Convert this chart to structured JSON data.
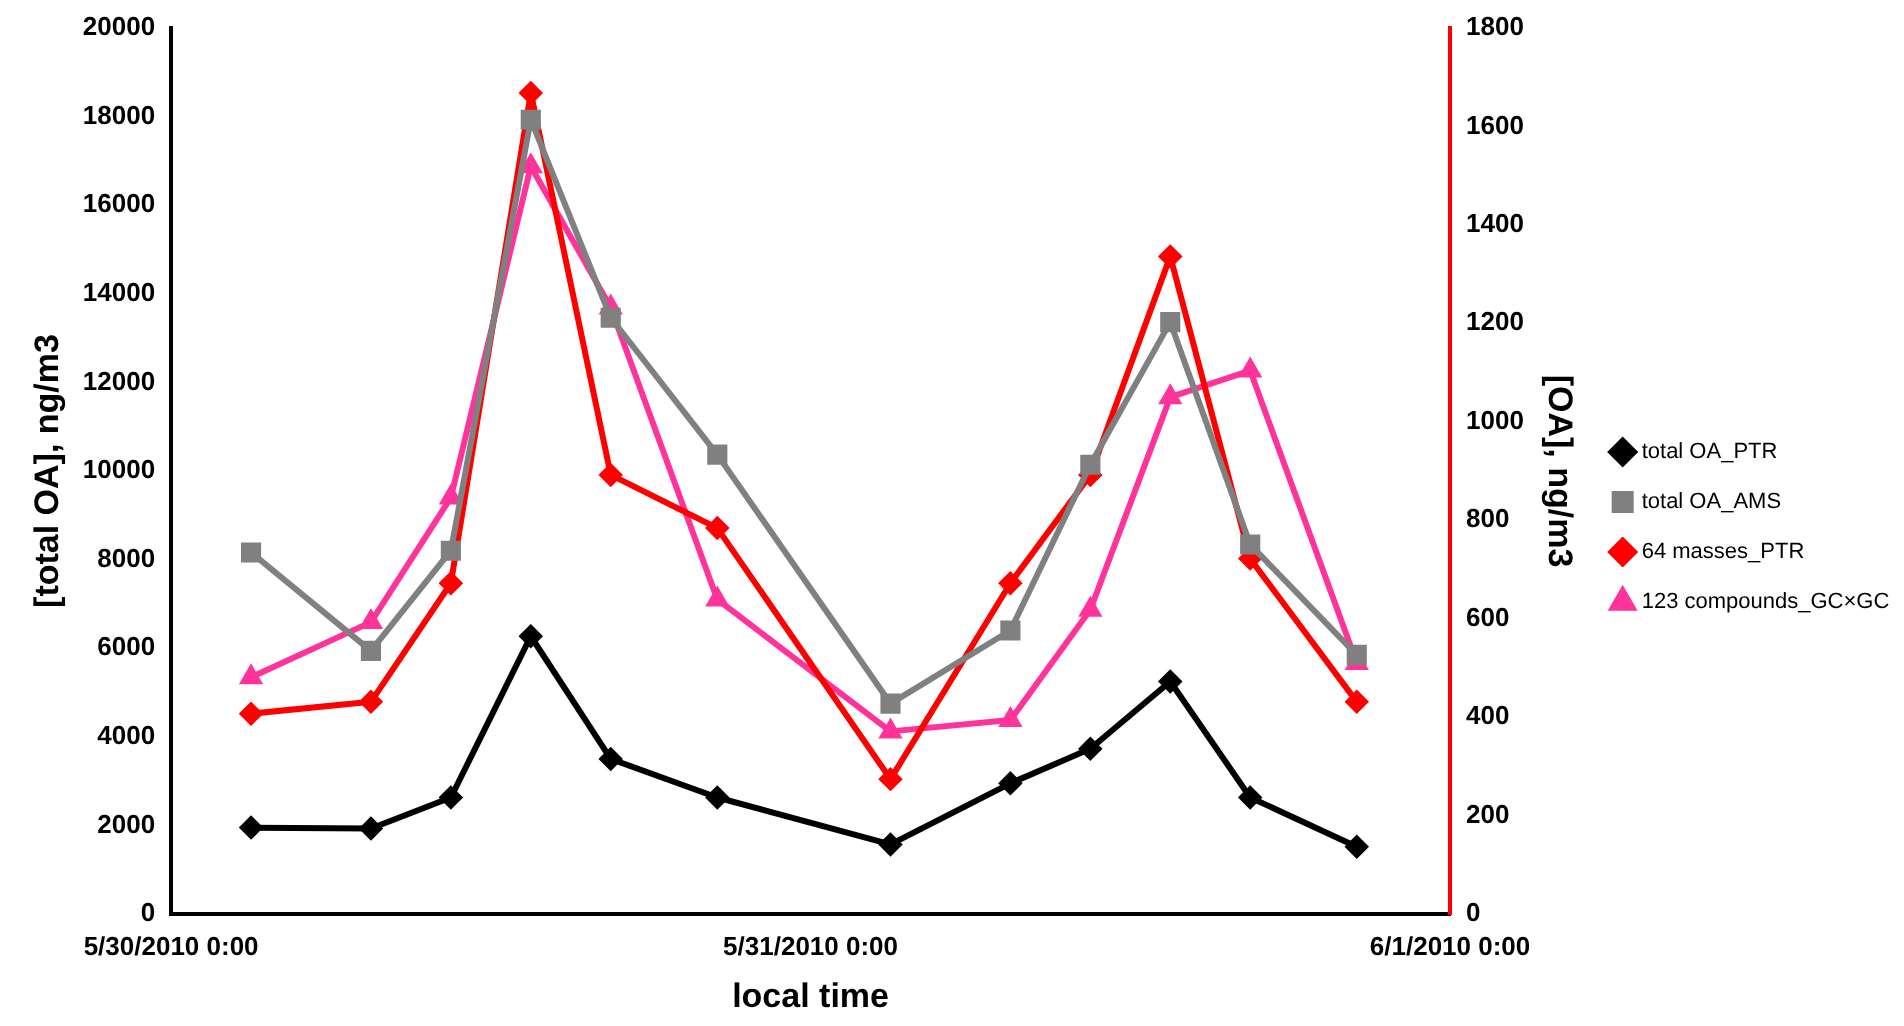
{
  "chart_data": {
    "type": "line",
    "xlabel": "local time",
    "ylabel": "[total OA], ng/m3",
    "y2label": "[OA], ng/m3",
    "x": [
      "2010-05-30T03:00",
      "2010-05-30T07:30",
      "2010-05-30T10:30",
      "2010-05-30T13:30",
      "2010-05-30T16:30",
      "2010-05-30T20:30",
      "2010-05-31T03:00",
      "2010-05-31T07:30",
      "2010-05-31T10:30",
      "2010-05-31T13:30",
      "2010-05-31T16:30",
      "2010-05-31T20:30"
    ],
    "series": [
      {
        "name": "total OA_PTR",
        "color": "#000000",
        "marker": "diamond",
        "values": [
          1950,
          1930,
          2630,
          6270,
          3500,
          2630,
          1570,
          2950,
          3730,
          5250,
          2630,
          1520
        ]
      },
      {
        "name": "total OA_AMS",
        "color": "#808080",
        "marker": "square",
        "values": [
          8160,
          5940,
          8200,
          17930,
          13460,
          10370,
          4750,
          6400,
          10140,
          13360,
          8340,
          5850
        ]
      },
      {
        "name": "64 masses_PTR",
        "color": "#ff0000",
        "marker": "diamond",
        "axis": "y2",
        "values": [
          407,
          431,
          672,
          1668,
          892,
          784,
          274,
          672,
          892,
          1336,
          722,
          431
        ]
      },
      {
        "name": "123 compounds_GC×GC",
        "color": "#ff3399",
        "marker": "triangle",
        "axis": "y2",
        "values": [
          481,
          593,
          846,
          1519,
          1232,
          639,
          371,
          394,
          618,
          1050,
          1104,
          510
        ]
      }
    ],
    "xlim": [
      "2010-05-30T00:00",
      "2010-06-01T00:00"
    ],
    "xticks": [
      {
        "value": "2010-05-30T00:00",
        "label": "5/30/2010 0:00"
      },
      {
        "value": "2010-05-31T00:00",
        "label": "5/31/2010 0:00"
      },
      {
        "value": "2010-06-01T00:00",
        "label": "6/1/2010 0:00"
      }
    ],
    "ylim": [
      0,
      20000
    ],
    "yticks": [
      0,
      2000,
      4000,
      6000,
      8000,
      10000,
      12000,
      14000,
      16000,
      18000,
      20000
    ],
    "y2lim": [
      0,
      1800
    ],
    "y2ticks": [
      0,
      200,
      400,
      600,
      800,
      1000,
      1200,
      1400,
      1600,
      1800
    ],
    "grid": false,
    "legend": "right",
    "line_style": "solid"
  }
}
